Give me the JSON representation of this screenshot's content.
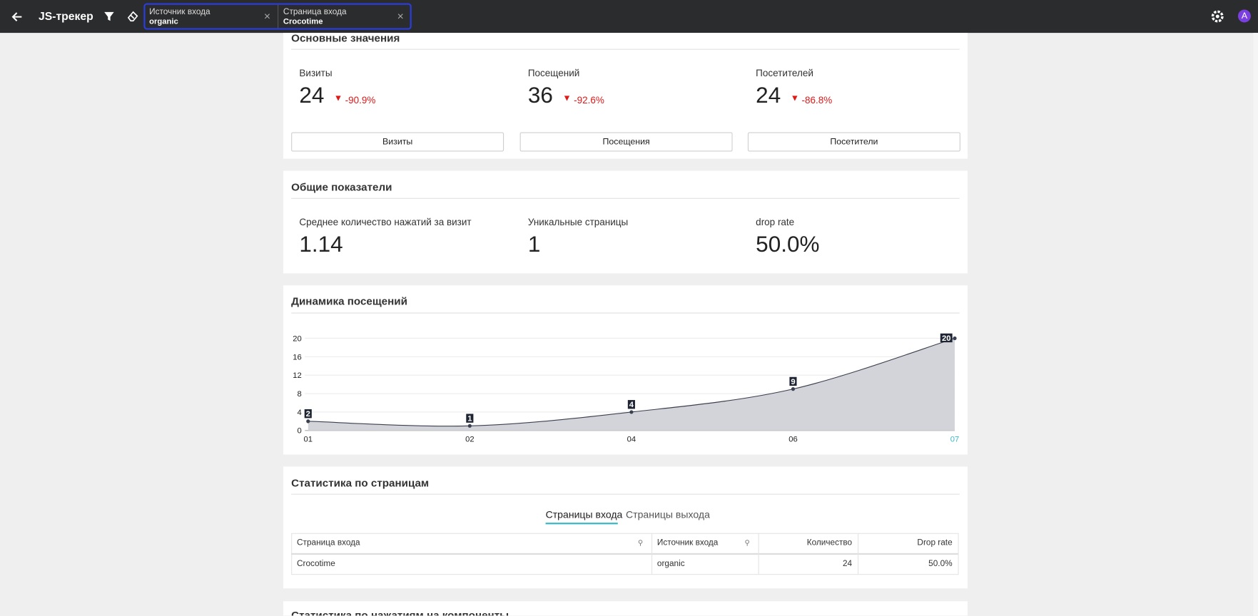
{
  "header": {
    "title": "JS-трекер",
    "filters": [
      {
        "label": "Источник входа",
        "value": "organic"
      },
      {
        "label": "Страница входа",
        "value": "Crocotime"
      }
    ],
    "avatar": "A"
  },
  "main_values": {
    "title": "Основные значения",
    "metrics": [
      {
        "label": "Визиты",
        "value": "24",
        "change": "-90.9%",
        "button": "Визиты"
      },
      {
        "label": "Посещений",
        "value": "36",
        "change": "-92.6%",
        "button": "Посещения"
      },
      {
        "label": "Посетителей",
        "value": "24",
        "change": "-86.8%",
        "button": "Посетители"
      }
    ]
  },
  "general": {
    "title": "Общие показатели",
    "metrics": [
      {
        "label": "Среднее количество нажатий за визит",
        "value": "1.14"
      },
      {
        "label": "Уникальные страницы",
        "value": "1"
      },
      {
        "label": "drop rate",
        "value": "50.0%"
      }
    ]
  },
  "chart_data": {
    "type": "area",
    "title": "Динамика посещений",
    "categories": [
      "01",
      "02",
      "04",
      "06",
      "07"
    ],
    "values": [
      2,
      1,
      4,
      9,
      20
    ],
    "ylim": [
      0,
      20
    ],
    "yticks": [
      0,
      4,
      8,
      12,
      16,
      20
    ],
    "grid": true,
    "color": "#d3d4d9",
    "line_color": "#3b4050"
  },
  "pages": {
    "title": "Статистика по страницам",
    "tabs": [
      "Страницы входа",
      "Страницы выхода"
    ],
    "table": {
      "columns": [
        "Страница входа",
        "Источник входа",
        "Количество",
        "Drop rate"
      ],
      "rows": [
        [
          "Crocotime",
          "organic",
          "24",
          "50.0%"
        ]
      ]
    }
  },
  "next_section": {
    "title": "Статистика по нажатиям на компоненты"
  }
}
